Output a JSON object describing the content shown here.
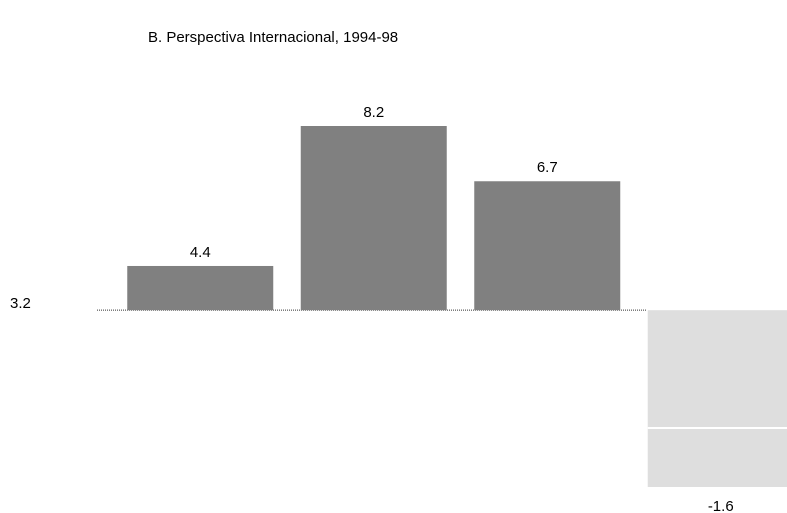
{
  "chart_data": {
    "type": "bar",
    "title": "B.  Perspectiva Internacional, 1994-98",
    "values": [
      4.4,
      8.2,
      6.7,
      -1.6
    ],
    "colors": [
      "#808080",
      "#808080",
      "#808080",
      "#dedede"
    ],
    "baseline": 3.2,
    "ylim": [
      -1.6,
      8.2
    ],
    "zero_line": true
  }
}
